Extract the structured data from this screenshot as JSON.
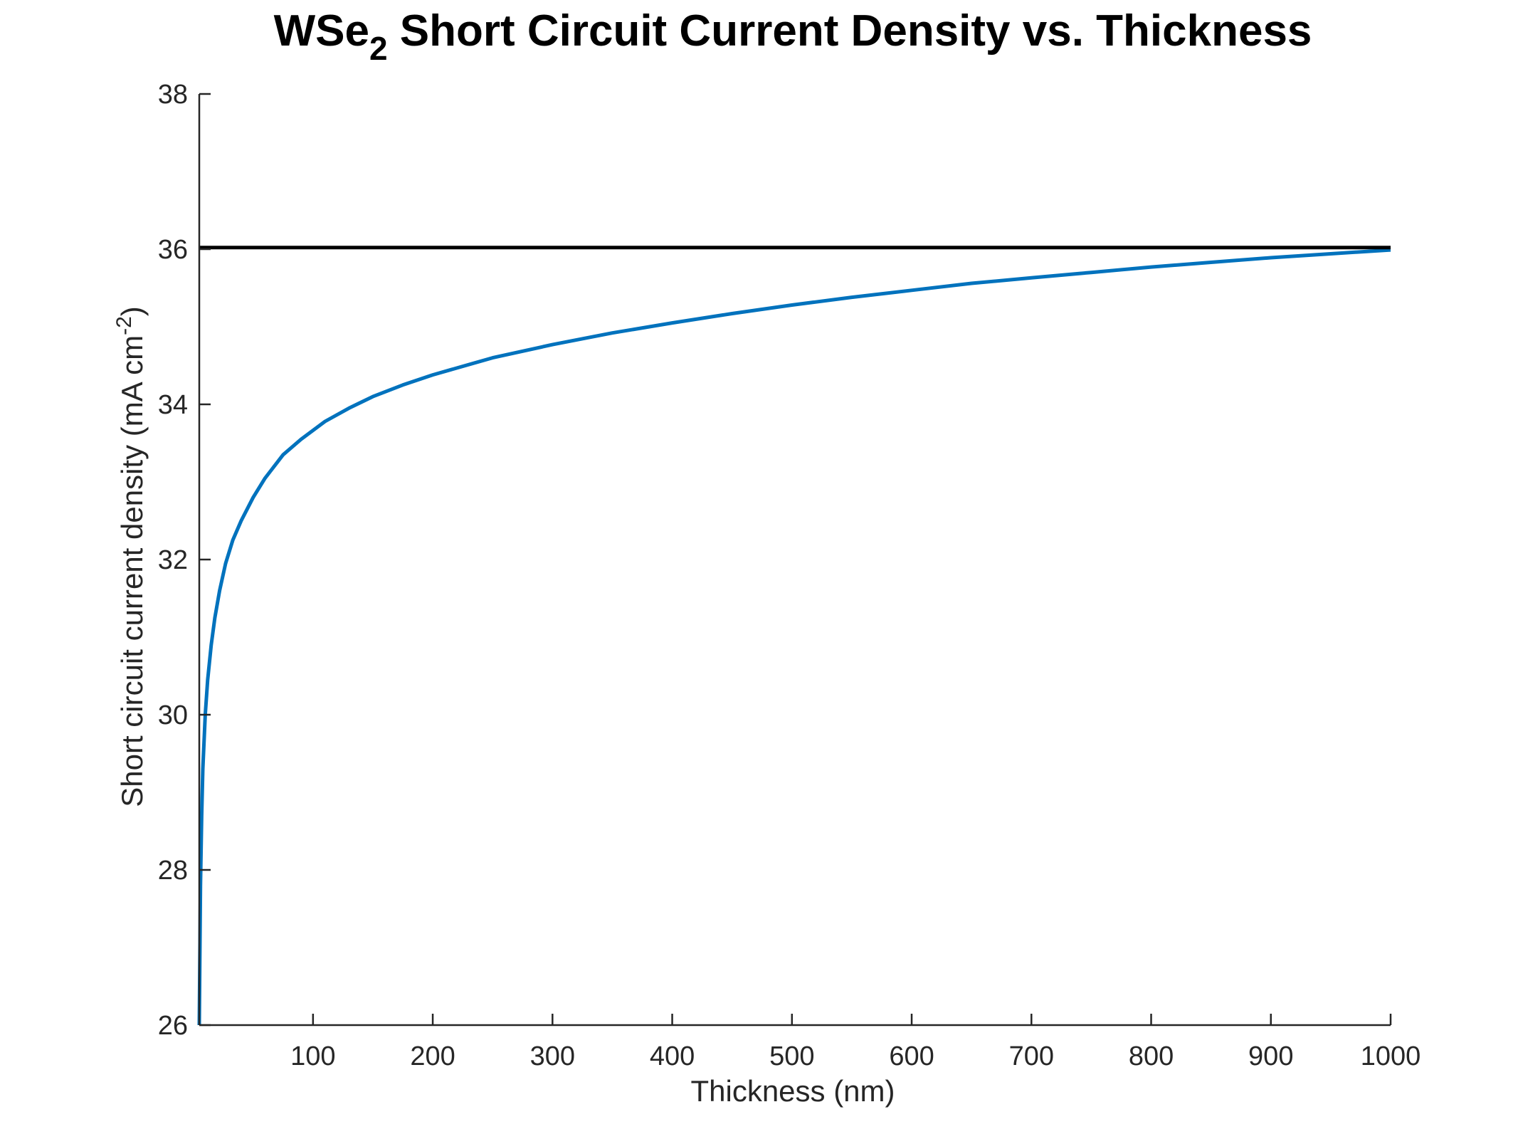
{
  "chart_data": {
    "type": "line",
    "title": "WSe",
    "title_subscript": "2",
    "title_rest": " Short Circuit Current Density vs. Thickness",
    "xlabel": "Thickness (nm)",
    "ylabel": "Short circuit current density (mA cm",
    "ylabel_superscript": "-2",
    "ylabel_close": ")",
    "xlim": [
      5,
      1000
    ],
    "ylim": [
      26,
      38
    ],
    "xticks": [
      100,
      200,
      300,
      400,
      500,
      600,
      700,
      800,
      900,
      1000
    ],
    "yticks": [
      26,
      28,
      30,
      32,
      34,
      36,
      38
    ],
    "grid": false,
    "box": false,
    "series": [
      {
        "color": "#0072bd",
        "x": [
          5,
          6,
          7,
          8,
          10,
          12,
          15,
          18,
          22,
          27,
          33,
          40,
          50,
          60,
          75,
          90,
          110,
          130,
          150,
          175,
          200,
          250,
          300,
          350,
          400,
          450,
          500,
          550,
          600,
          650,
          700,
          750,
          800,
          850,
          900,
          950,
          1000
        ],
        "y": [
          26.0,
          27.8,
          28.7,
          29.3,
          30.0,
          30.45,
          30.9,
          31.25,
          31.6,
          31.95,
          32.25,
          32.5,
          32.8,
          33.05,
          33.35,
          33.55,
          33.78,
          33.95,
          34.1,
          34.25,
          34.38,
          34.6,
          34.77,
          34.92,
          35.05,
          35.17,
          35.28,
          35.38,
          35.47,
          35.56,
          35.63,
          35.7,
          35.77,
          35.83,
          35.89,
          35.94,
          35.99
        ]
      },
      {
        "color": "#000000",
        "x": [
          5,
          1000
        ],
        "y": [
          36.02,
          36.02
        ]
      }
    ]
  }
}
